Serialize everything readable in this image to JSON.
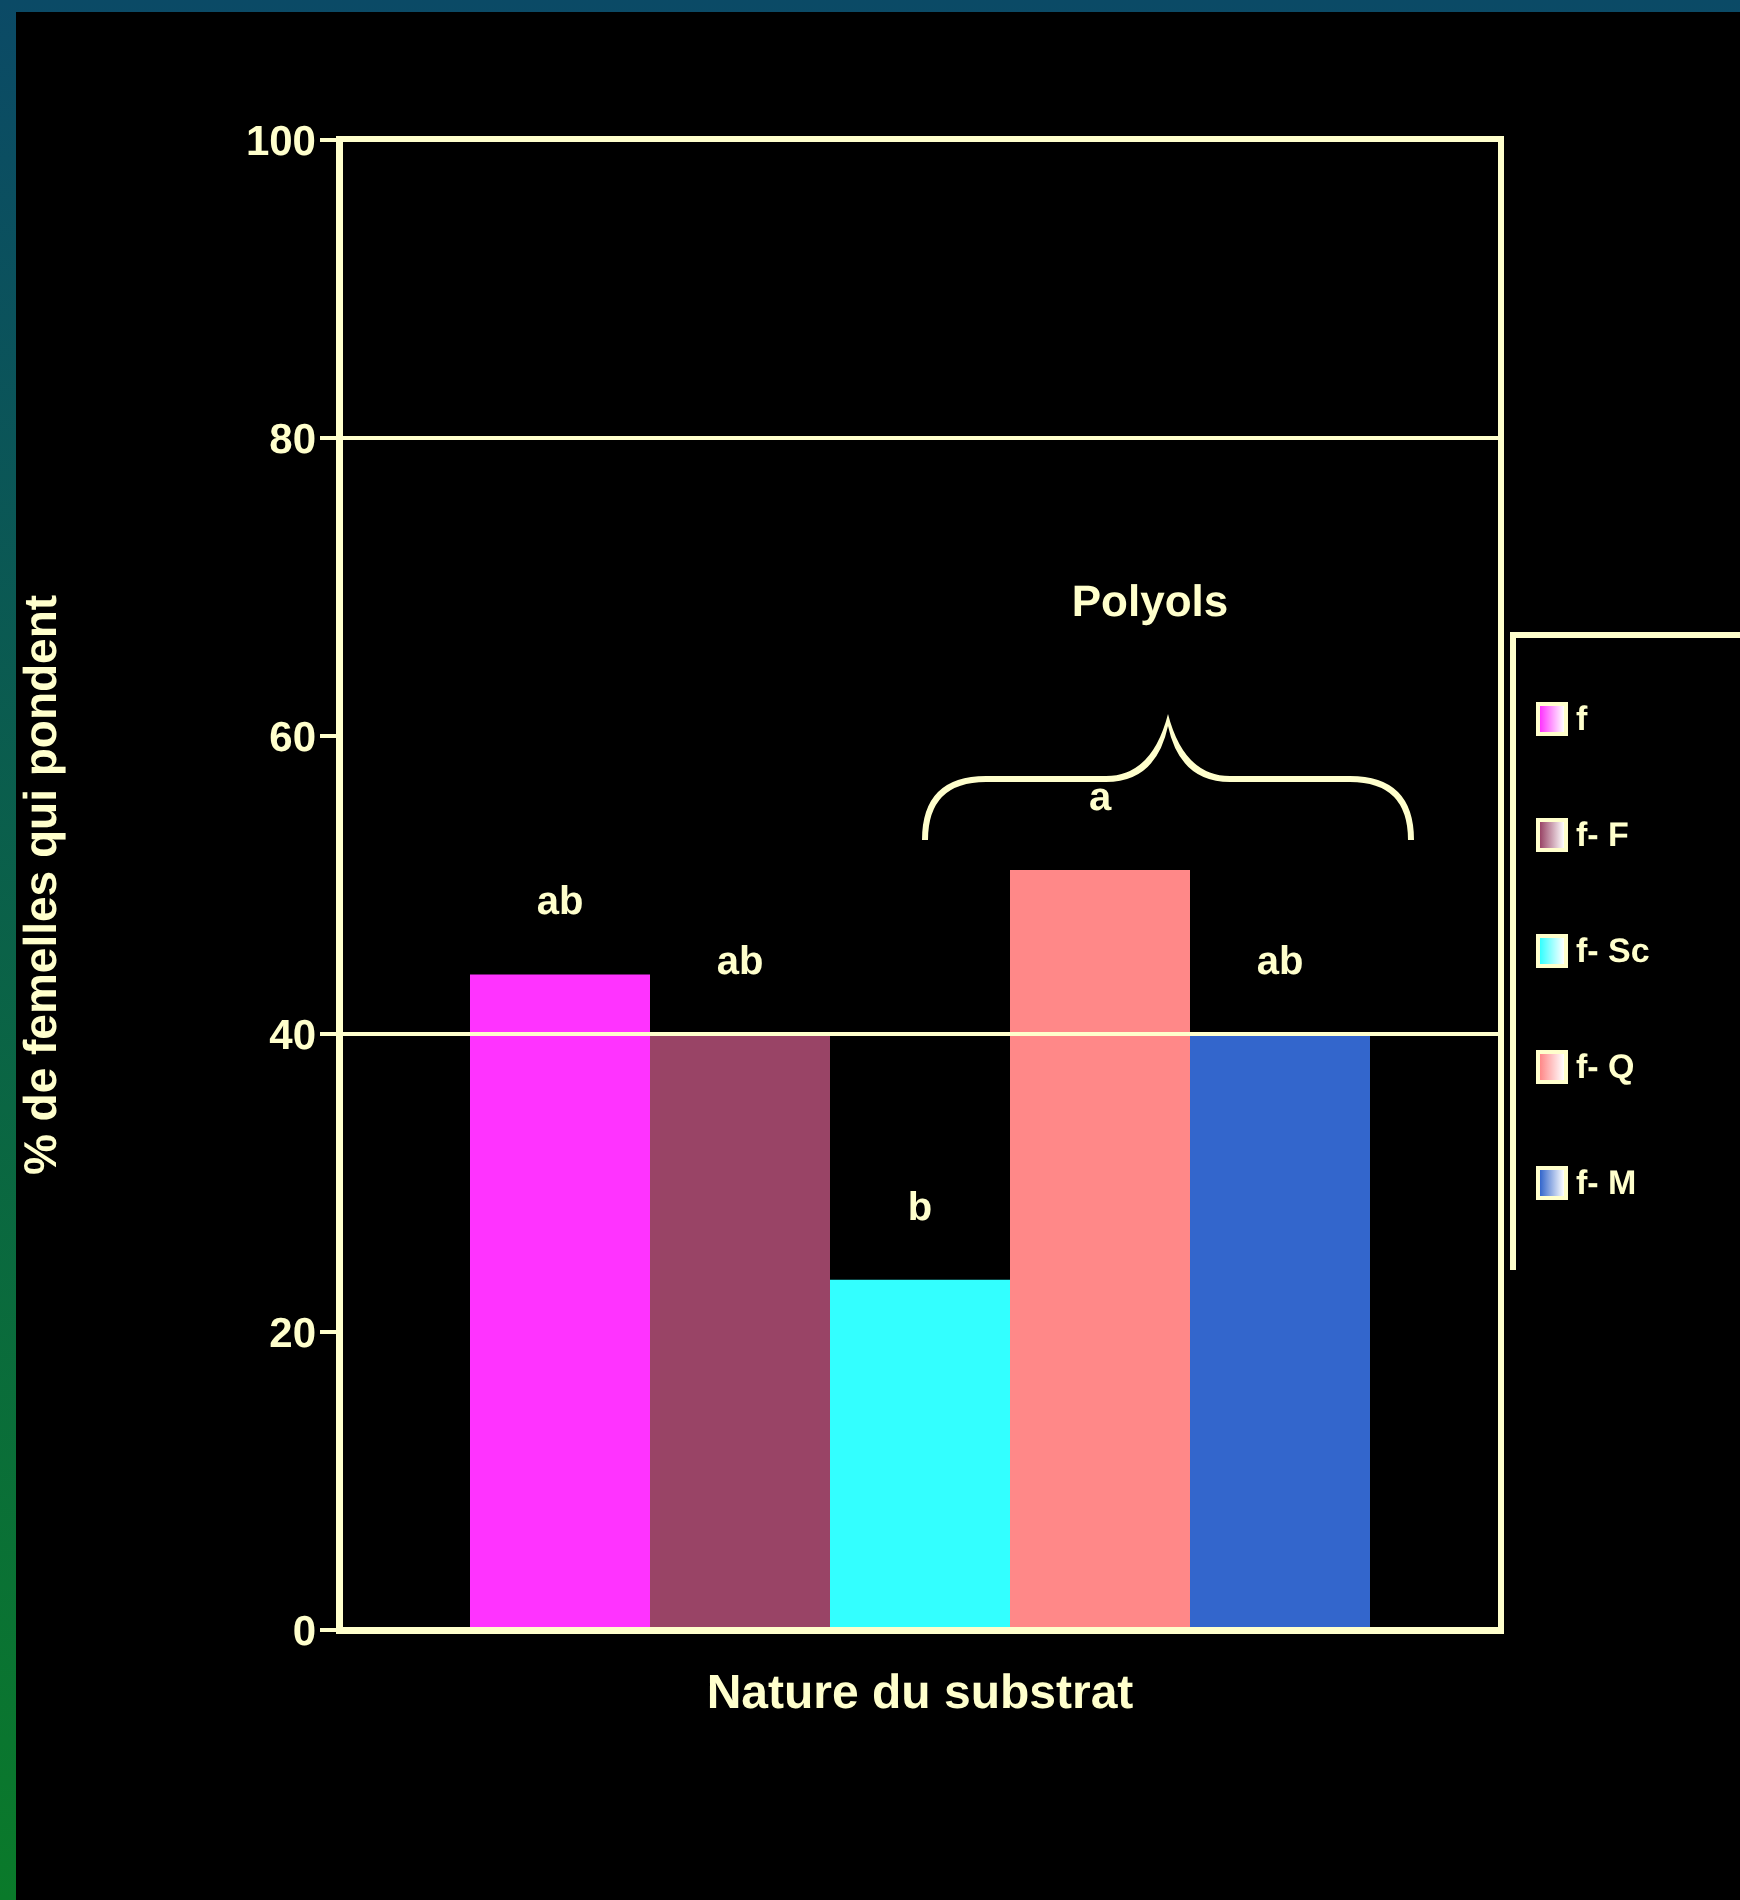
{
  "chart_data": {
    "type": "bar",
    "categories": [
      null
    ],
    "xlabel": "Nature du substrat",
    "ylabel": "% de femelles qui pondent",
    "series": [
      {
        "name": "f",
        "color": "#ff33ff",
        "values": [
          44
        ],
        "value_labels": [
          "ab"
        ]
      },
      {
        "name": "f- F",
        "color": "#994466",
        "values": [
          40
        ],
        "value_labels": [
          "ab"
        ]
      },
      {
        "name": "f- Sc",
        "color": "#33ffff",
        "values": [
          23.5
        ],
        "value_labels": [
          "b"
        ]
      },
      {
        "name": "f- Q",
        "color": "#ff8888",
        "values": [
          51
        ],
        "value_labels": [
          "a"
        ]
      },
      {
        "name": "f- M",
        "color": "#3366cc",
        "values": [
          40
        ],
        "value_labels": [
          "ab"
        ]
      }
    ],
    "annotations": [
      "Polyols"
    ],
    "ylim": [
      0,
      100
    ],
    "yticks": [
      0,
      20,
      40,
      60,
      80,
      100
    ],
    "ref_lines": [
      {
        "axis": "y",
        "value": 40,
        "color": "#ffffcc"
      },
      {
        "axis": "y",
        "value": 80,
        "color": "#ffffcc"
      }
    ],
    "legend": "right"
  }
}
